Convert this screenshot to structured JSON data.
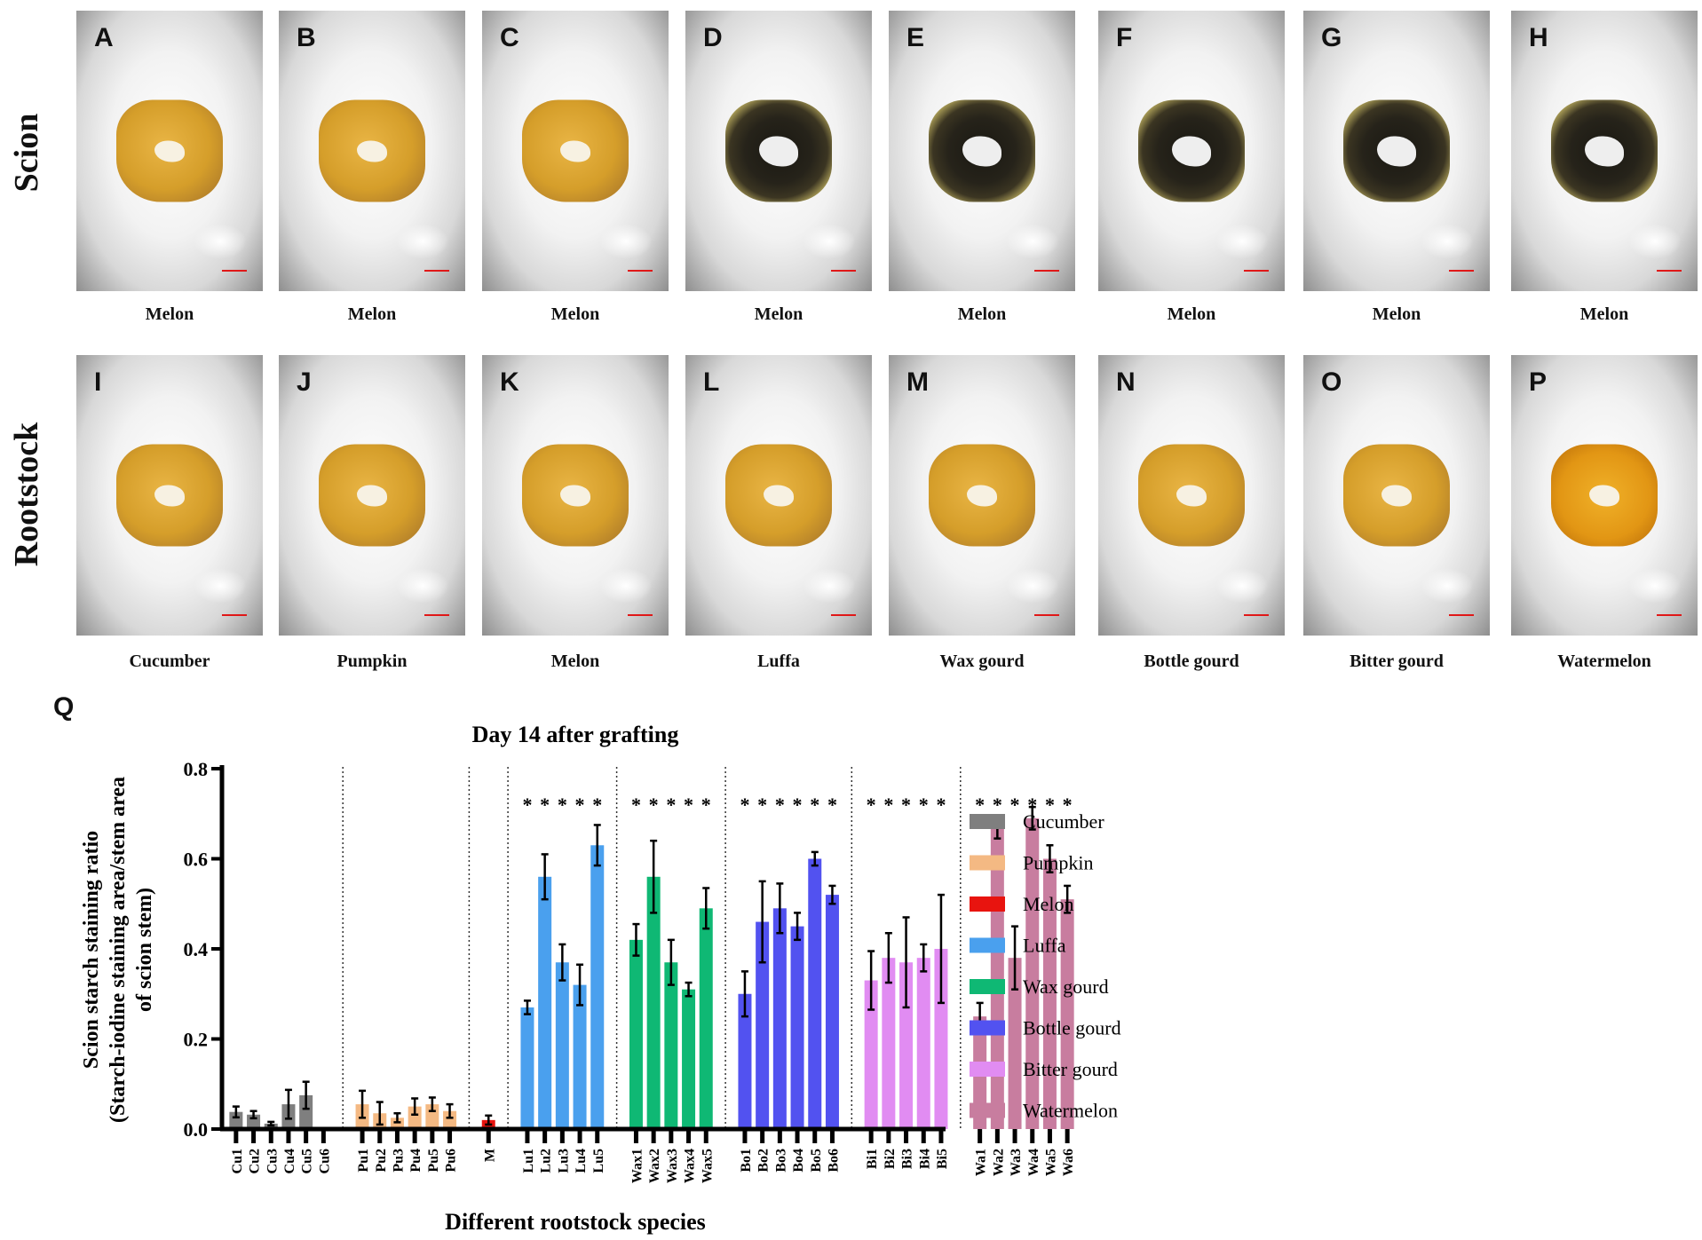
{
  "row_labels": {
    "scion": "Scion",
    "rootstock": "Rootstock"
  },
  "scion_panels": [
    {
      "letter": "A",
      "caption": "Melon",
      "stain": "yellow"
    },
    {
      "letter": "B",
      "caption": "Melon",
      "stain": "yellow"
    },
    {
      "letter": "C",
      "caption": "Melon",
      "stain": "yellow"
    },
    {
      "letter": "D",
      "caption": "Melon",
      "stain": "dark"
    },
    {
      "letter": "E",
      "caption": "Melon",
      "stain": "dark"
    },
    {
      "letter": "F",
      "caption": "Melon",
      "stain": "dark"
    },
    {
      "letter": "G",
      "caption": "Melon",
      "stain": "dark"
    },
    {
      "letter": "H",
      "caption": "Melon",
      "stain": "dark"
    }
  ],
  "rootstock_panels": [
    {
      "letter": "I",
      "caption": "Cucumber",
      "stain": "yellow"
    },
    {
      "letter": "J",
      "caption": "Pumpkin",
      "stain": "yellow"
    },
    {
      "letter": "K",
      "caption": "Melon",
      "stain": "yellow"
    },
    {
      "letter": "L",
      "caption": "Luffa",
      "stain": "yellow"
    },
    {
      "letter": "M",
      "caption": "Wax gourd",
      "stain": "yellow"
    },
    {
      "letter": "N",
      "caption": "Bottle gourd",
      "stain": "yellow"
    },
    {
      "letter": "O",
      "caption": "Bitter gourd",
      "stain": "yellow"
    },
    {
      "letter": "P",
      "caption": "Watermelon",
      "stain": "orange"
    }
  ],
  "chart_panel_letter": "Q",
  "chart_data": {
    "type": "bar",
    "title": "Day 14 after grafting",
    "xlabel": "Different rootstock species",
    "ylabel_lines": [
      "Scion starch staining ratio",
      "(Starch-iodine staining area/stem area",
      "of scion stem)"
    ],
    "ylim": [
      0,
      0.8
    ],
    "yticks": [
      0.0,
      0.2,
      0.4,
      0.6,
      0.8
    ],
    "ytick_labels": [
      "0.0",
      "0.2",
      "0.4",
      "0.6",
      "0.8"
    ],
    "significance_marker": "*",
    "groups": [
      {
        "name": "Cucumber",
        "color": "#7f7f7f",
        "categories": [
          "Cu1",
          "Cu2",
          "Cu3",
          "Cu4",
          "Cu5",
          "Cu6"
        ],
        "values": [
          0.038,
          0.032,
          0.012,
          0.055,
          0.075,
          0.0
        ],
        "errors": [
          0.012,
          0.008,
          0.004,
          0.032,
          0.03,
          0.0
        ],
        "stars": [
          false,
          false,
          false,
          false,
          false,
          false
        ]
      },
      {
        "name": "Pumpkin",
        "color": "#f4b983",
        "categories": [
          "Pu1",
          "Pu2",
          "Pu3",
          "Pu4",
          "Pu5",
          "Pu6"
        ],
        "values": [
          0.055,
          0.035,
          0.025,
          0.05,
          0.055,
          0.04
        ],
        "errors": [
          0.03,
          0.025,
          0.01,
          0.018,
          0.015,
          0.015
        ],
        "stars": [
          false,
          false,
          false,
          false,
          false,
          false
        ]
      },
      {
        "name": "Melon",
        "color": "#e8140f",
        "categories": [
          "M"
        ],
        "values": [
          0.02
        ],
        "errors": [
          0.01
        ],
        "stars": [
          false
        ]
      },
      {
        "name": "Luffa",
        "color": "#4aa0ee",
        "categories": [
          "Lu1",
          "Lu2",
          "Lu3",
          "Lu4",
          "Lu5"
        ],
        "values": [
          0.27,
          0.56,
          0.37,
          0.32,
          0.63
        ],
        "errors": [
          0.015,
          0.05,
          0.04,
          0.045,
          0.045
        ],
        "stars": [
          true,
          true,
          true,
          true,
          true
        ]
      },
      {
        "name": "Wax gourd",
        "color": "#0fb874",
        "categories": [
          "Wax1",
          "Wax2",
          "Wax3",
          "Wax4",
          "Wax5"
        ],
        "values": [
          0.42,
          0.56,
          0.37,
          0.31,
          0.49
        ],
        "errors": [
          0.035,
          0.08,
          0.05,
          0.015,
          0.045
        ],
        "stars": [
          true,
          true,
          true,
          true,
          true
        ]
      },
      {
        "name": "Bottle gourd",
        "color": "#5252f0",
        "categories": [
          "Bo1",
          "Bo2",
          "Bo3",
          "Bo4",
          "Bo5",
          "Bo6"
        ],
        "values": [
          0.3,
          0.46,
          0.49,
          0.45,
          0.6,
          0.52
        ],
        "errors": [
          0.05,
          0.09,
          0.055,
          0.03,
          0.015,
          0.02
        ],
        "stars": [
          true,
          true,
          true,
          true,
          true,
          true
        ]
      },
      {
        "name": "Bitter gourd",
        "color": "#e18cf2",
        "categories": [
          "Bi1",
          "Bi2",
          "Bi3",
          "Bi4",
          "Bi5"
        ],
        "values": [
          0.33,
          0.38,
          0.37,
          0.38,
          0.4
        ],
        "errors": [
          0.065,
          0.055,
          0.1,
          0.03,
          0.12
        ],
        "stars": [
          true,
          true,
          true,
          true,
          true
        ]
      },
      {
        "name": "Watermelon",
        "color": "#c87d9f",
        "categories": [
          "Wa1",
          "Wa2",
          "Wa3",
          "Wa4",
          "Wa5",
          "Wa6"
        ],
        "values": [
          0.25,
          0.67,
          0.38,
          0.69,
          0.6,
          0.51
        ],
        "errors": [
          0.03,
          0.025,
          0.07,
          0.025,
          0.03,
          0.03
        ],
        "stars": [
          true,
          true,
          true,
          true,
          true,
          true
        ]
      }
    ],
    "legend_position": "right"
  }
}
